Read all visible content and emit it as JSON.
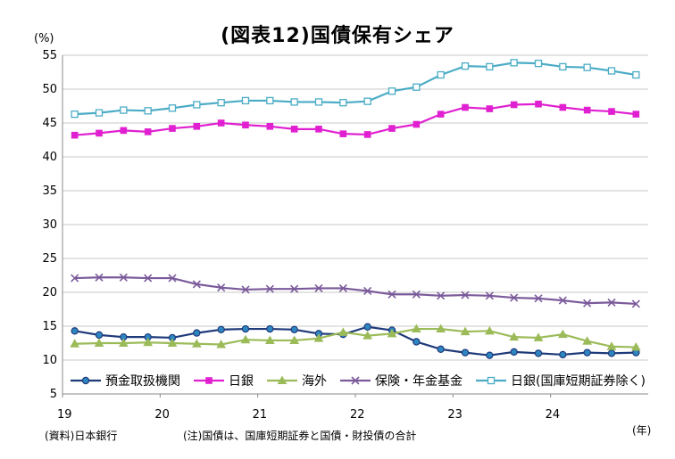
{
  "chart_data": {
    "type": "line",
    "title": "(図表12)国債保有シェア",
    "unit_label": "(%)",
    "x_unit_label": "(年)",
    "ylim": [
      5,
      55
    ],
    "yticks": [
      5,
      10,
      15,
      20,
      25,
      30,
      35,
      40,
      45,
      50,
      55
    ],
    "x_ticks": [
      {
        "label": "19",
        "pos": 0
      },
      {
        "label": "20",
        "pos": 4
      },
      {
        "label": "21",
        "pos": 8
      },
      {
        "label": "22",
        "pos": 12
      },
      {
        "label": "23",
        "pos": 16
      },
      {
        "label": "24",
        "pos": 20
      }
    ],
    "x_count": 24,
    "grid": true,
    "series": [
      {
        "name": "預金取扱機関",
        "color": "#1f3a7a",
        "marker": "circle",
        "marker_fill": "#2e86c1",
        "values": [
          14.3,
          13.7,
          13.4,
          13.4,
          13.3,
          14.0,
          14.5,
          14.6,
          14.6,
          14.5,
          13.9,
          13.8,
          14.9,
          14.4,
          12.7,
          11.6,
          11.1,
          10.7,
          11.2,
          11.0,
          10.8,
          11.1,
          11.0,
          11.1
        ]
      },
      {
        "name": "日銀",
        "color": "#e020d0",
        "marker": "square",
        "marker_fill": "#e020d0",
        "values": [
          43.2,
          43.5,
          43.9,
          43.7,
          44.2,
          44.5,
          45.0,
          44.7,
          44.5,
          44.1,
          44.1,
          43.4,
          43.3,
          44.2,
          44.8,
          46.3,
          47.3,
          47.1,
          47.7,
          47.8,
          47.3,
          46.9,
          46.7,
          46.3
        ]
      },
      {
        "name": "海外",
        "color": "#9bbb59",
        "marker": "triangle",
        "marker_fill": "#9bbb59",
        "values": [
          12.4,
          12.5,
          12.5,
          12.6,
          12.5,
          12.4,
          12.3,
          13.0,
          12.9,
          12.9,
          13.2,
          14.1,
          13.6,
          13.9,
          14.6,
          14.6,
          14.2,
          14.3,
          13.4,
          13.3,
          13.8,
          12.8,
          12.0,
          11.9
        ]
      },
      {
        "name": "保険・年金基金",
        "color": "#7a5a9a",
        "marker": "x",
        "marker_fill": "#7a5a9a",
        "values": [
          22.1,
          22.2,
          22.2,
          22.1,
          22.1,
          21.2,
          20.7,
          20.4,
          20.5,
          20.5,
          20.6,
          20.6,
          20.2,
          19.7,
          19.7,
          19.5,
          19.6,
          19.5,
          19.2,
          19.1,
          18.8,
          18.4,
          18.5,
          18.3
        ]
      },
      {
        "name": "日銀(国庫短期証券除く)",
        "color": "#4bacc6",
        "marker": "square-open",
        "marker_fill": "#ffffff",
        "values": [
          46.3,
          46.5,
          46.9,
          46.8,
          47.2,
          47.7,
          48.0,
          48.3,
          48.3,
          48.1,
          48.1,
          48.0,
          48.2,
          49.7,
          50.3,
          52.1,
          53.4,
          53.3,
          53.9,
          53.8,
          53.3,
          53.2,
          52.7,
          52.1
        ]
      }
    ]
  },
  "footer": {
    "source": "(資料)日本銀行",
    "note": "(注)国債は、国庫短期証券と国債・財投債の合計"
  }
}
